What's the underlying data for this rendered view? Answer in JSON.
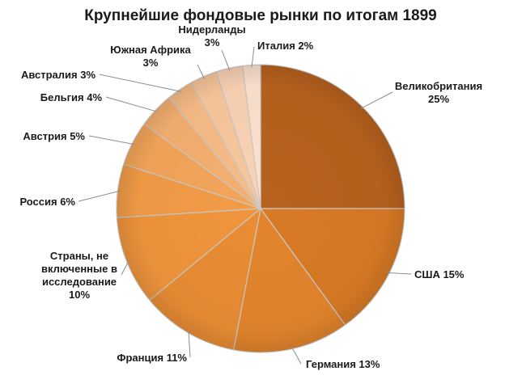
{
  "chart_data": {
    "type": "pie",
    "title": "Крупнейшие фондовые рынки по итогам 1899",
    "slices": [
      {
        "label": "Великобритания",
        "value": 25,
        "value_label": "25%",
        "color": "#b8621e",
        "label_lines": [
          "Великобритания",
          "25%"
        ]
      },
      {
        "label": "США",
        "value": 15,
        "value_label": "15%",
        "color": "#d97a25",
        "label_lines": [
          "США 15%"
        ]
      },
      {
        "label": "Германия",
        "value": 13,
        "value_label": "13%",
        "color": "#e3852c",
        "label_lines": [
          "Германия 13%"
        ]
      },
      {
        "label": "Франция",
        "value": 11,
        "value_label": "11%",
        "color": "#ea8d34",
        "label_lines": [
          "Франция 11%"
        ]
      },
      {
        "label": "Страны, не включенные в исследование",
        "value": 10,
        "value_label": "10%",
        "color": "#f0953c",
        "label_lines": [
          "Страны, не",
          "включенные в",
          "исследование",
          "10%"
        ]
      },
      {
        "label": "Россия",
        "value": 6,
        "value_label": "6%",
        "color": "#f39c47",
        "label_lines": [
          "Россия 6%"
        ]
      },
      {
        "label": "Австрия",
        "value": 5,
        "value_label": "5%",
        "color": "#f4a65a",
        "label_lines": [
          "Австрия 5%"
        ]
      },
      {
        "label": "Бельгия",
        "value": 4,
        "value_label": "4%",
        "color": "#f5b070",
        "label_lines": [
          "Бельгия 4%"
        ]
      },
      {
        "label": "Австралия",
        "value": 3,
        "value_label": "3%",
        "color": "#f7bc87",
        "label_lines": [
          "Австралия 3%"
        ]
      },
      {
        "label": "Южная Африка",
        "value": 3,
        "value_label": "3%",
        "color": "#f9c79d",
        "label_lines": [
          "Южная Африка",
          "3%"
        ]
      },
      {
        "label": "Нидерланды",
        "value": 3,
        "value_label": "3%",
        "color": "#fbd3b5",
        "label_lines": [
          "Нидерланды",
          "3%"
        ]
      },
      {
        "label": "Италия",
        "value": 2,
        "value_label": "2%",
        "color": "#fde2cf",
        "label_lines": [
          "Италия 2%"
        ]
      }
    ],
    "legend": "none"
  }
}
